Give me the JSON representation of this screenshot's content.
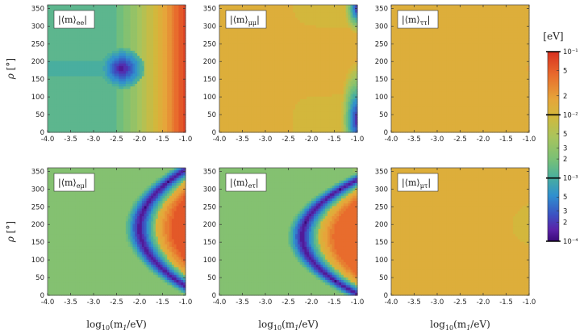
{
  "chart_data": {
    "type": "heatmap",
    "xlabel": "log₁₀(m₁/eV)",
    "ylabel": "ρ [°]",
    "xlim": [
      -4.0,
      -1.0
    ],
    "ylim": [
      0,
      360
    ],
    "x_ticks": [
      "-4.0",
      "-3.5",
      "-3.0",
      "-2.5",
      "-2.0",
      "-1.5",
      "-1.0"
    ],
    "y_ticks": [
      "0",
      "50",
      "100",
      "150",
      "200",
      "250",
      "300",
      "350"
    ],
    "panels": [
      {
        "label": "|⟨m⟩ee|",
        "position": "top-left",
        "feature": "minimum island near x=-2.4, ρ=180; increases to ~0.1 eV at x=-1.0"
      },
      {
        "label": "|⟨m⟩μμ|",
        "position": "top-middle",
        "feature": "nearly uniform ~0.02 eV; minima near x=-1.05 at ρ≈20–80 and ρ≈340"
      },
      {
        "label": "|⟨m⟩ττ|",
        "position": "top-right",
        "feature": "nearly uniform ~0.02 eV"
      },
      {
        "label": "|⟨m⟩eμ|",
        "position": "bottom-left",
        "feature": "arc-shaped minimum from (x=-1.0,ρ=30) through (x=-2.0,ρ=190) to (x=-1.0,ρ=355)"
      },
      {
        "label": "|⟨m⟩eτ|",
        "position": "bottom-middle",
        "feature": "arc-shaped minimum from (x=-1.05,ρ=5) through (x=-2.2,ρ=180) to (x=-1.05,ρ=320)"
      },
      {
        "label": "|⟨m⟩μτ|",
        "position": "bottom-right",
        "feature": "nearly uniform ~0.02 eV"
      }
    ],
    "colorbar": {
      "unit": "[eV]",
      "scale": "log",
      "range": [
        0.0001,
        0.1
      ],
      "ticks": [
        "10⁻¹",
        "5",
        "2",
        "10⁻²",
        "5",
        "3",
        "2",
        "10⁻³",
        "5",
        "3",
        "2",
        "10⁻⁴"
      ]
    },
    "colors": {
      "min": "#3a0a78",
      "low": "#2f9fd0",
      "mid": "#7cc27a",
      "high": "#e2a83a",
      "max": "#d8301f"
    }
  },
  "panel_labels": {
    "p0": {
      "pre": "|⟨m⟩",
      "sub": "ee",
      "post": "|"
    },
    "p1": {
      "pre": "|⟨m⟩",
      "sub": "μμ",
      "post": "|"
    },
    "p2": {
      "pre": "|⟨m⟩",
      "sub": "ττ",
      "post": "|"
    },
    "p3": {
      "pre": "|⟨m⟩",
      "sub": "eμ",
      "post": "|"
    },
    "p4": {
      "pre": "|⟨m⟩",
      "sub": "eτ",
      "post": "|"
    },
    "p5": {
      "pre": "|⟨m⟩",
      "sub": "μτ",
      "post": "|"
    }
  },
  "axis": {
    "ylabel_rho": "ρ",
    "ylabel_unit": "[°]",
    "xlabel_log": "log",
    "xlabel_sub": "10",
    "xlabel_rest": "(m",
    "xlabel_sub2": "1",
    "xlabel_end": "/eV)"
  }
}
